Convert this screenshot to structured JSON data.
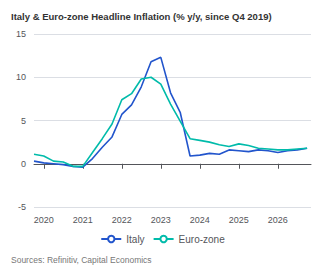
{
  "chart_data": {
    "type": "line",
    "title": "Italy & Euro-zone Headline Inflation (% y/y, since Q4 2019)",
    "source": "Sources: Refinitiv, Capital Economics",
    "x": [
      2019.75,
      2020.0,
      2020.25,
      2020.5,
      2020.75,
      2021.0,
      2021.25,
      2021.5,
      2021.75,
      2022.0,
      2022.25,
      2022.5,
      2022.75,
      2023.0,
      2023.25,
      2023.5,
      2023.75,
      2024.0,
      2024.25,
      2024.5,
      2024.75,
      2025.0,
      2025.25,
      2025.5,
      2025.75,
      2026.0,
      2026.25,
      2026.5,
      2026.75
    ],
    "series": [
      {
        "name": "Italy",
        "color": "#2255cc",
        "values": [
          0.3,
          0.1,
          0.0,
          -0.1,
          -0.3,
          -0.4,
          0.6,
          1.9,
          3.1,
          5.7,
          6.8,
          8.9,
          11.8,
          12.3,
          8.2,
          5.9,
          0.9,
          1.0,
          1.2,
          1.1,
          1.6,
          1.5,
          1.4,
          1.6,
          1.5,
          1.3,
          1.5,
          1.6,
          1.8
        ]
      },
      {
        "name": "Euro-zone",
        "color": "#00bbaa",
        "values": [
          1.1,
          0.9,
          0.3,
          0.2,
          -0.3,
          -0.3,
          1.3,
          2.9,
          4.6,
          7.4,
          8.1,
          9.8,
          10.0,
          9.2,
          6.9,
          4.9,
          2.9,
          2.7,
          2.5,
          2.2,
          2.0,
          2.3,
          2.1,
          1.8,
          1.7,
          1.6,
          1.6,
          1.7,
          1.8
        ]
      }
    ],
    "xlim": [
      2019.75,
      2026.85
    ],
    "xticks": [
      2020,
      2021,
      2022,
      2023,
      2024,
      2025,
      2026
    ],
    "ylim": [
      -5,
      15
    ],
    "yticks": [
      -5,
      0,
      5,
      10,
      15
    ],
    "grid": true,
    "legend": "bottom"
  }
}
